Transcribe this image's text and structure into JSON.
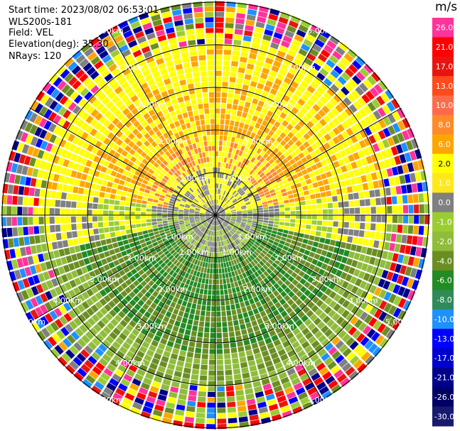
{
  "header": {
    "start_time": "Start time: 2023/08/02 06:53:01",
    "instrument": "WLS200s-181",
    "field": "Field: VEL",
    "elevation": "Elevation(deg): 35.30",
    "nrays": "NRays: 120"
  },
  "colorbar": {
    "unit": "m/s",
    "levels": [
      {
        "label": "26.0",
        "color": "#ff3399",
        "text": "#ffffff"
      },
      {
        "label": "21.0",
        "color": "#ff0000",
        "text": "#ffffff"
      },
      {
        "label": "17.0",
        "color": "#e8150f",
        "text": "#ffffff"
      },
      {
        "label": "13.0",
        "color": "#ff4a1c",
        "text": "#ffffff"
      },
      {
        "label": "10.0",
        "color": "#ff6b4a",
        "text": "#ffffff"
      },
      {
        "label": "8.0",
        "color": "#ff8a2a",
        "text": "#ffffff"
      },
      {
        "label": "6.0",
        "color": "#ffa500",
        "text": "#ffffff"
      },
      {
        "label": "2.0",
        "color": "#ffff00",
        "text": "#000000"
      },
      {
        "label": "1.0",
        "color": "#ffe81a",
        "text": "#ffffff"
      },
      {
        "label": "0.0",
        "color": "#808080",
        "text": "#ffffff"
      },
      {
        "label": "-1.0",
        "color": "#9acd32",
        "text": "#ffffff"
      },
      {
        "label": "-2.0",
        "color": "#8fbc3a",
        "text": "#ffffff"
      },
      {
        "label": "-4.0",
        "color": "#6b8e23",
        "text": "#ffffff"
      },
      {
        "label": "-6.0",
        "color": "#228b22",
        "text": "#ffffff"
      },
      {
        "label": "-8.0",
        "color": "#2e8b57",
        "text": "#ffffff"
      },
      {
        "label": "-10.0",
        "color": "#1e90ff",
        "text": "#ffffff"
      },
      {
        "label": "-13.0",
        "color": "#0000ff",
        "text": "#ffffff"
      },
      {
        "label": "-17.0",
        "color": "#0000cd",
        "text": "#ffffff"
      },
      {
        "label": "-21.0",
        "color": "#00008b",
        "text": "#ffffff"
      },
      {
        "label": "-26.0",
        "color": "#000066",
        "text": "#ffffff"
      },
      {
        "label": "-30.0",
        "color": "#191970",
        "text": "#ffffff"
      }
    ]
  },
  "range_rings": {
    "labels": [
      "1.00km",
      "2.00km",
      "3.00km",
      "4.00km",
      "5.00km"
    ]
  }
}
